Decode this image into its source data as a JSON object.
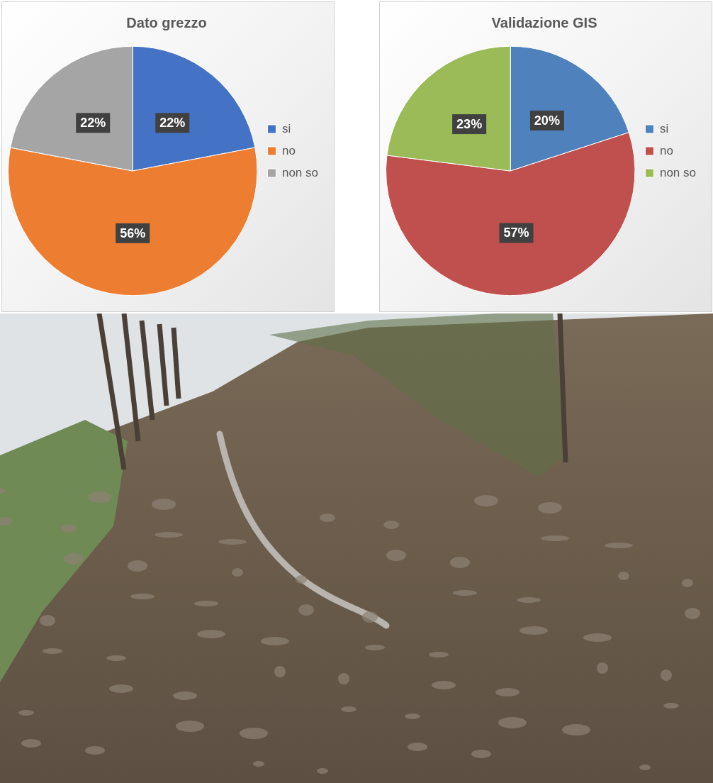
{
  "chart_data": [
    {
      "type": "pie",
      "title": "Dato grezzo",
      "categories": [
        "si",
        "no",
        "non so"
      ],
      "values": [
        22,
        56,
        22
      ],
      "value_labels": [
        "22%",
        "56%",
        "22%"
      ],
      "colors": [
        "#4472c4",
        "#ed7d31",
        "#a5a5a5"
      ],
      "data_labels": true,
      "legend": "right"
    },
    {
      "type": "pie",
      "title": "Validazione GIS",
      "categories": [
        "si",
        "no",
        "non so"
      ],
      "values": [
        20,
        57,
        23
      ],
      "value_labels": [
        "20%",
        "57%",
        "23%"
      ],
      "colors": [
        "#4f81bd",
        "#c0504d",
        "#9bbb59"
      ],
      "data_labels": true,
      "legend": "right"
    }
  ]
}
